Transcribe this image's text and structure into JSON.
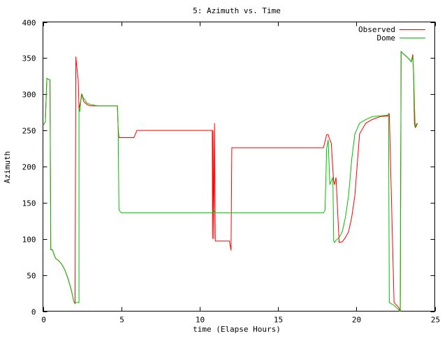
{
  "chart_data": {
    "type": "line",
    "title": "5: Azimuth vs. Time",
    "xlabel": "time (Elapse Hours)",
    "ylabel": "Azimuth",
    "xlim": [
      0,
      25
    ],
    "ylim": [
      0,
      400
    ],
    "xticks": [
      "0",
      "5",
      "10",
      "15",
      "20",
      "25"
    ],
    "yticks": [
      "0",
      "50",
      "100",
      "150",
      "200",
      "250",
      "300",
      "350",
      "400"
    ],
    "grid": false,
    "legend": "top-right",
    "series": [
      {
        "name": "Observed",
        "color": "#ff0000",
        "x": [
          0.0,
          0.05,
          0.15,
          0.25,
          0.4,
          0.45,
          0.5,
          0.6,
          0.8,
          1.0,
          1.2,
          1.4,
          1.6,
          1.8,
          1.95,
          2.05,
          2.1,
          2.15,
          2.25,
          2.3,
          2.4,
          2.5,
          2.6,
          2.8,
          3.0,
          3.5,
          4.0,
          4.5,
          4.75,
          4.8,
          4.85,
          5.0,
          5.5,
          5.8,
          6.0,
          7.0,
          8.0,
          9.0,
          10.0,
          10.5,
          10.8,
          10.82,
          10.85,
          10.9,
          10.95,
          11.0,
          11.05,
          11.1,
          11.5,
          11.9,
          12.0,
          12.05,
          12.1,
          13.0,
          14.0,
          15.0,
          16.0,
          17.0,
          17.8,
          17.9,
          18.1,
          18.2,
          18.3,
          18.4,
          18.5,
          18.55,
          18.6,
          18.7,
          18.9,
          19.1,
          19.3,
          19.5,
          19.7,
          19.9,
          20.2,
          20.6,
          21.0,
          21.5,
          22.0,
          22.05,
          22.1,
          22.4,
          22.7,
          22.8,
          22.85,
          23.0,
          23.3,
          23.5,
          23.6,
          23.65,
          23.7,
          23.75,
          23.8,
          23.9
        ],
        "y": [
          258,
          258,
          262,
          322,
          320,
          320,
          85,
          85,
          73,
          70,
          65,
          57,
          45,
          30,
          15,
          10,
          352,
          340,
          320,
          280,
          290,
          300,
          290,
          286,
          284,
          284,
          284,
          284,
          284,
          253,
          240,
          240,
          240,
          240,
          250,
          250,
          250,
          250,
          250,
          250,
          250,
          100,
          250,
          100,
          260,
          97,
          97,
          97,
          97,
          97,
          84,
          226,
          226,
          226,
          226,
          226,
          226,
          226,
          226,
          226,
          244,
          244,
          237,
          232,
          195,
          180,
          175,
          185,
          95,
          96,
          102,
          110,
          130,
          160,
          245,
          260,
          265,
          269,
          270,
          273,
          273,
          12,
          5,
          0,
          359,
          356,
          350,
          345,
          355,
          325,
          260,
          254,
          255,
          260
        ]
      },
      {
        "name": "Dome",
        "color": "#00c000",
        "x": [
          0.0,
          0.05,
          0.15,
          0.25,
          0.4,
          0.45,
          0.5,
          0.6,
          0.8,
          1.0,
          1.2,
          1.4,
          1.6,
          1.8,
          1.95,
          2.0,
          2.1,
          2.3,
          2.3,
          2.35,
          2.45,
          2.55,
          2.8,
          3.0,
          3.5,
          4.0,
          4.5,
          4.75,
          4.8,
          4.85,
          5.0,
          6.0,
          8.0,
          10.0,
          10.8,
          10.85,
          10.9,
          11.0,
          12.0,
          14.0,
          16.0,
          17.8,
          17.9,
          18.0,
          18.1,
          18.2,
          18.3,
          18.4,
          18.5,
          18.55,
          18.6,
          18.7,
          18.9,
          19.1,
          19.3,
          19.5,
          19.7,
          19.9,
          20.2,
          20.6,
          21.0,
          21.5,
          22.0,
          22.05,
          22.1,
          22.4,
          22.7,
          22.75,
          22.8,
          22.85,
          23.0,
          23.3,
          23.5,
          23.6,
          23.65,
          23.7,
          23.75,
          23.8,
          23.9
        ],
        "y": [
          258,
          258,
          262,
          322,
          320,
          320,
          85,
          85,
          73,
          70,
          65,
          57,
          45,
          30,
          15,
          12,
          12,
          12,
          280,
          276,
          300,
          296,
          288,
          286,
          284,
          284,
          284,
          284,
          253,
          140,
          136,
          136,
          136,
          136,
          136,
          138,
          140,
          136,
          136,
          136,
          136,
          136,
          136,
          140,
          225,
          237,
          175,
          180,
          185,
          97,
          95,
          98,
          102,
          110,
          130,
          160,
          210,
          245,
          260,
          265,
          269,
          270,
          271,
          271,
          12,
          8,
          2,
          0,
          0,
          359,
          356,
          350,
          345,
          352,
          330,
          290,
          254,
          258,
          260
        ]
      }
    ]
  }
}
